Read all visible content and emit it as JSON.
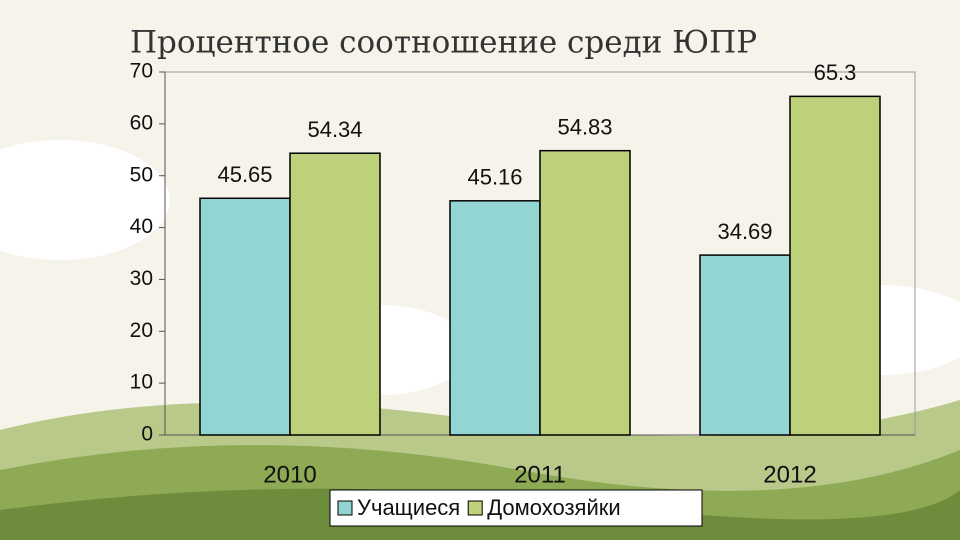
{
  "chart_data": {
    "type": "bar",
    "title": "Процентное соотношение среди ЮПР",
    "categories": [
      "2010",
      "2011",
      "2012"
    ],
    "series": [
      {
        "name": "Учащиеся",
        "color": "#92d5d3",
        "values": [
          45.65,
          45.16,
          34.69
        ]
      },
      {
        "name": "Домохозяйки",
        "color": "#bdd17a",
        "values": [
          54.34,
          54.83,
          65.3
        ]
      }
    ],
    "ylim": [
      0,
      70
    ],
    "yticks": [
      0,
      10,
      20,
      30,
      40,
      50,
      60,
      70
    ],
    "grid": false,
    "legend": "bottom"
  }
}
